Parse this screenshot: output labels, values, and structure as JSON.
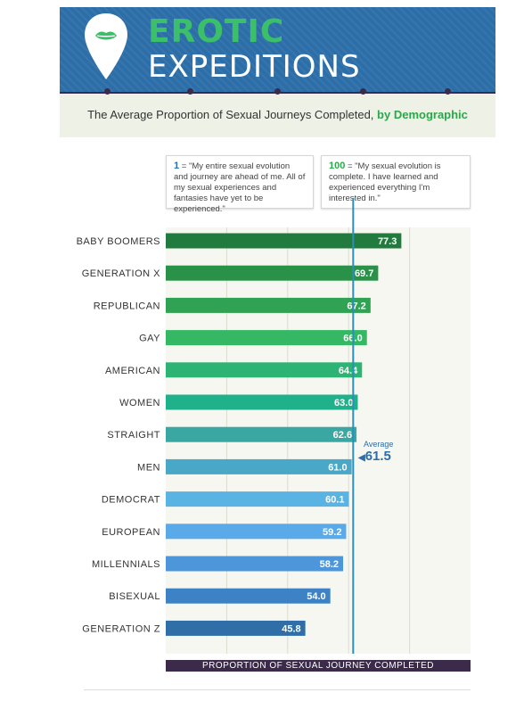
{
  "header": {
    "title_line1": "EROTIC",
    "title_line2": "EXPEDITIONS",
    "logo_icon": "map-pin-lips-icon"
  },
  "subtitle": {
    "main": "The Average Proportion of Sexual Journeys Completed,",
    "highlight": "by Demographic"
  },
  "notes": {
    "low_key": "1",
    "low_text": "= \"My entire sexual evolution and journey are ahead of me. All of my sexual experiences and fantasies have yet to be experienced.\"",
    "high_key": "100",
    "high_text": "= \"My sexual evolution is complete. I have learned and experienced everything I'm interested in.\""
  },
  "average": {
    "label": "Average",
    "value_text": "61.5"
  },
  "chart_data": {
    "type": "bar",
    "orientation": "horizontal",
    "categories": [
      "BABY BOOMERS",
      "GENERATION X",
      "REPUBLICAN",
      "GAY",
      "AMERICAN",
      "WOMEN",
      "STRAIGHT",
      "MEN",
      "DEMOCRAT",
      "EUROPEAN",
      "MILLENNIALS",
      "BISEXUAL",
      "GENERATION Z"
    ],
    "values": [
      77.3,
      69.7,
      67.2,
      66.0,
      64.4,
      63.0,
      62.6,
      61.0,
      60.1,
      59.2,
      58.2,
      54.0,
      45.8
    ],
    "value_labels": [
      "77.3",
      "69.7",
      "67.2",
      "66.0",
      "64.4",
      "63.0",
      "62.6",
      "61.0",
      "60.1",
      "59.2",
      "58.2",
      "54.0",
      "45.8"
    ],
    "bar_colors": [
      "#217a3e",
      "#2a9148",
      "#30a253",
      "#34b864",
      "#2db374",
      "#1fb18a",
      "#3aa7a2",
      "#49a8c7",
      "#5ab4e3",
      "#5aa9e8",
      "#4e96da",
      "#3d82c4",
      "#2f6ea6"
    ],
    "average": 61.5,
    "xlim": [
      0,
      100
    ],
    "xlabel": "PROPORTION OF SEXUAL JOURNEY COMPLETED",
    "grid": true
  }
}
